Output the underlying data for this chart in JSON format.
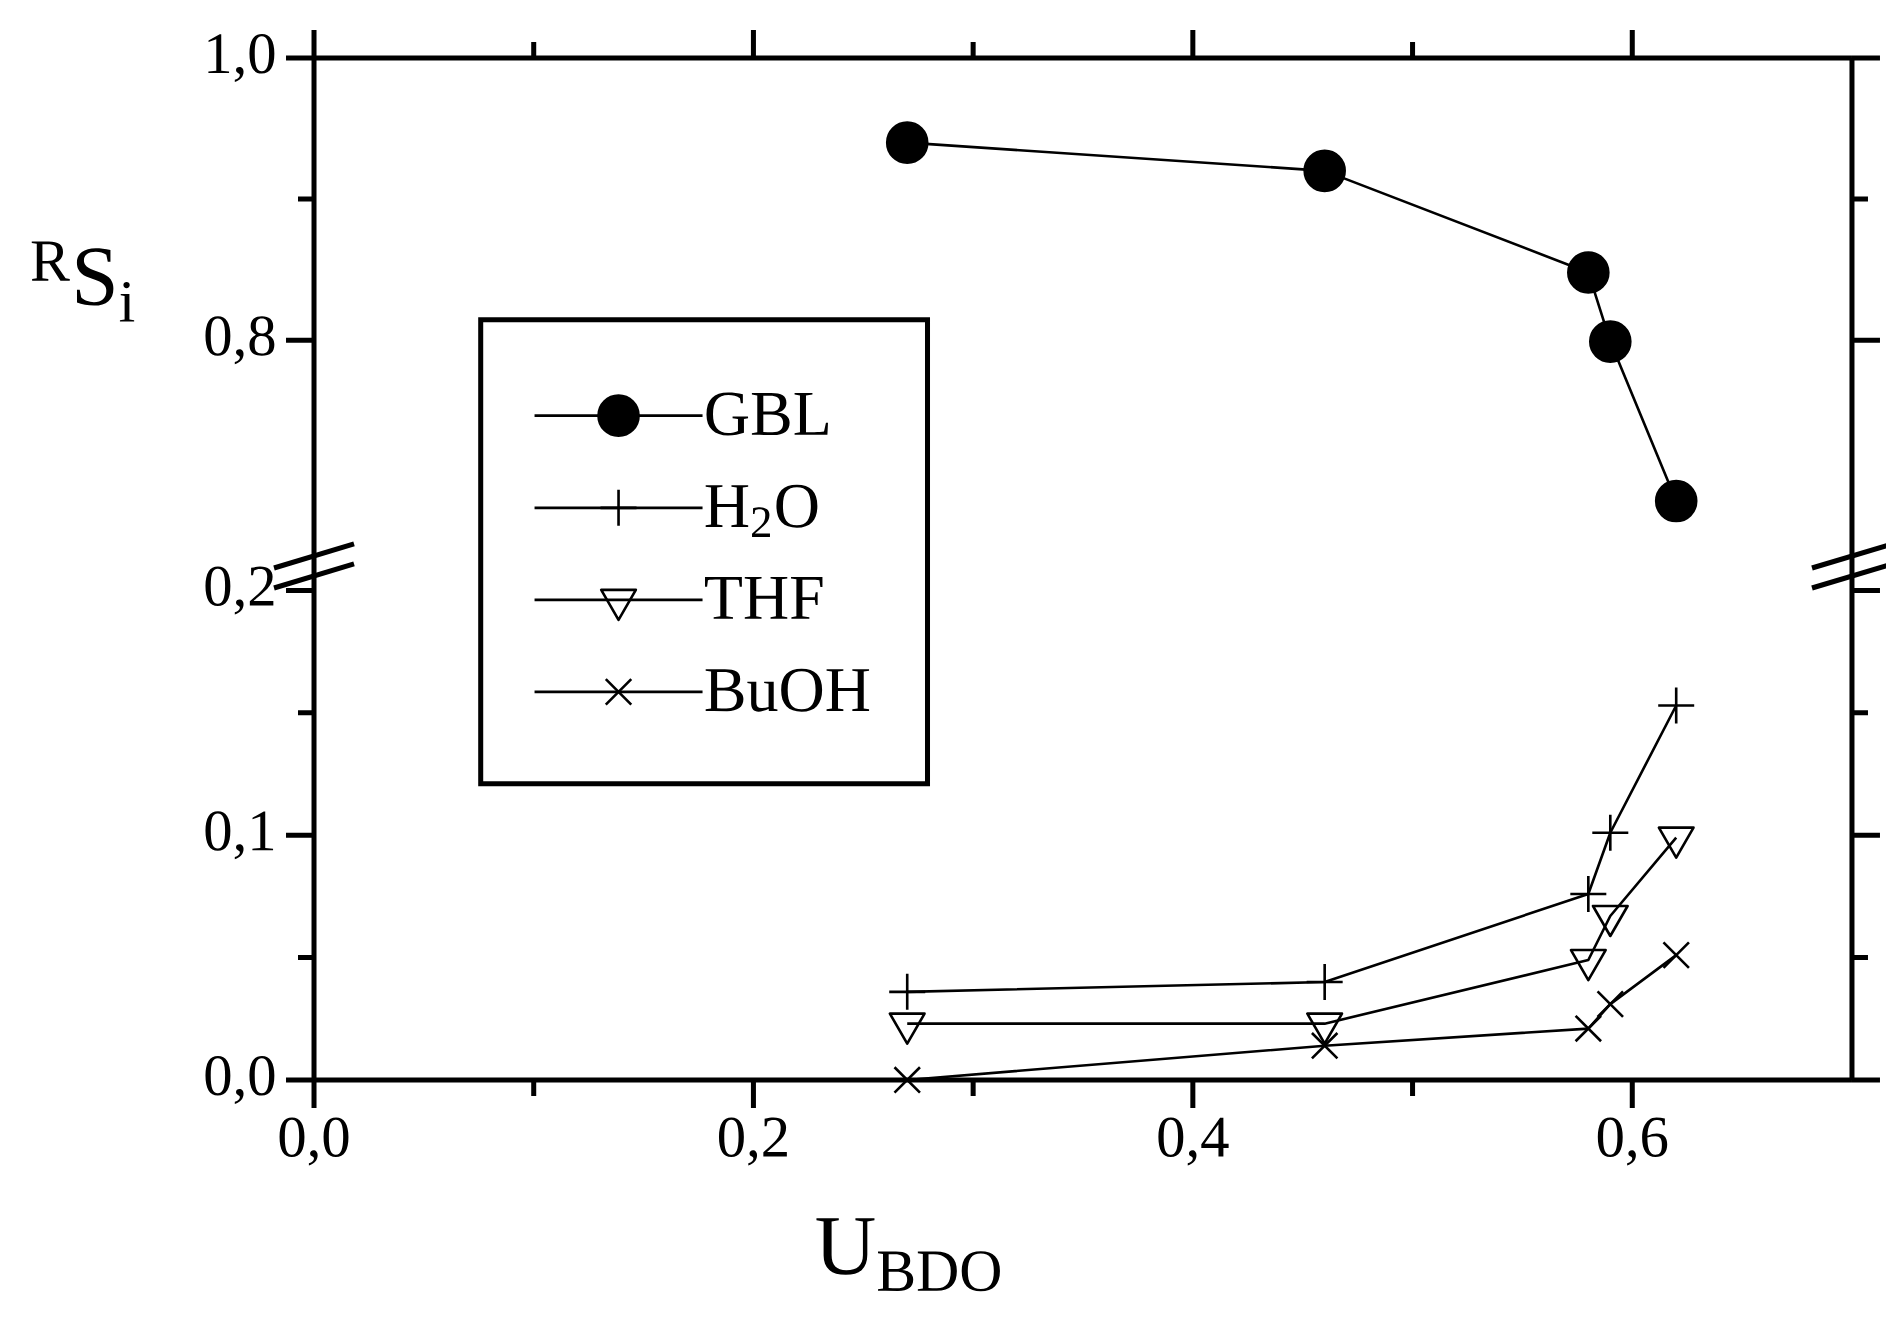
{
  "chart_data": [
    {
      "type": "line",
      "ylabel": "$^{R}$S$_{i}$",
      "xlim": [
        0,
        0.7
      ],
      "ylim": [
        0.64,
        1.0
      ],
      "xticks": [
        {
          "value": 0,
          "label": null
        },
        {
          "value": 0.2,
          "label": null
        },
        {
          "value": 0.4,
          "label": null
        },
        {
          "value": 0.6,
          "label": null
        }
      ],
      "yticks": [
        {
          "value": 0.8,
          "label": "0,8"
        },
        {
          "value": 1.0,
          "label": "1,0"
        }
      ],
      "tick_labels": "y",
      "legend": "left",
      "line_style": "solid",
      "series": [
        {
          "name": "GBL",
          "color": "#000000",
          "marker": "circle",
          "x": [
            0.27,
            0.46,
            0.58,
            0.59,
            0.62
          ],
          "values": [
            0.94,
            0.92,
            0.848,
            0.799,
            0.686
          ]
        }
      ]
    },
    {
      "type": "line",
      "xlabel": "U$_{BDO}$",
      "xlim": [
        0,
        0.7
      ],
      "ylim": [
        0,
        0.21
      ],
      "xticks": [
        {
          "value": 0,
          "label": "0,0"
        },
        {
          "value": 0.2,
          "label": "0,2"
        },
        {
          "value": 0.4,
          "label": "0,4"
        },
        {
          "value": 0.6,
          "label": "0,6"
        }
      ],
      "yticks": [
        {
          "value": 0,
          "label": "0,0"
        },
        {
          "value": 0.1,
          "label": "0,1"
        },
        {
          "value": 0.2,
          "label": "0,2"
        }
      ],
      "legend": "top left",
      "line_style": "solid",
      "series": [
        {
          "name": "H$_{2}$O",
          "color": "#000000",
          "marker": "plus",
          "x": [
            0.27,
            0.46,
            0.58,
            0.59,
            0.62
          ],
          "values": [
            0.036,
            0.04,
            0.076,
            0.101,
            0.153
          ]
        },
        {
          "name": "THF",
          "color": "#000000",
          "marker": "triangle-down",
          "x": [
            0.27,
            0.46,
            0.58,
            0.59,
            0.62
          ],
          "values": [
            0.023,
            0.023,
            0.049,
            0.067,
            0.099
          ]
        },
        {
          "name": "BuOH",
          "color": "#000000",
          "marker": "cross",
          "x": [
            0.27,
            0.46,
            0.58,
            0.59,
            0.62
          ],
          "values": [
            0,
            0.014,
            0.021,
            0.031,
            0.051
          ]
        }
      ]
    }
  ]
}
